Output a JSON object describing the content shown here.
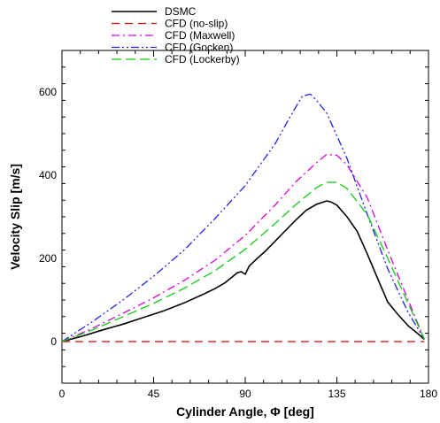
{
  "chart_data": {
    "type": "line",
    "title": "",
    "xlabel": "Cylinder Angle, Φ [deg]",
    "ylabel": "Velocity Slip [m/s]",
    "xlim": [
      0,
      180
    ],
    "ylim": [
      -100,
      700
    ],
    "xticks": [
      0,
      45,
      90,
      135,
      180
    ],
    "yticks": [
      0,
      200,
      400,
      600
    ],
    "xtick_labels": [
      "0",
      "45",
      "90",
      "135",
      "180"
    ],
    "ytick_labels": [
      "0",
      "200",
      "400",
      "600"
    ],
    "grid": false,
    "legend_position": "top-center",
    "series": [
      {
        "name": "DSMC",
        "color": "#000000",
        "dash": "solid",
        "x": [
          0,
          10,
          20,
          30,
          40,
          50,
          60,
          70,
          75,
          80,
          84,
          86,
          88,
          90,
          92,
          95,
          100,
          105,
          110,
          115,
          120,
          125,
          130,
          132,
          135,
          140,
          145,
          150,
          155,
          160,
          165,
          170,
          175,
          178
        ],
        "y": [
          0,
          13,
          28,
          42,
          58,
          74,
          93,
          115,
          127,
          141,
          157,
          165,
          168,
          162,
          182,
          196,
          218,
          243,
          268,
          293,
          316,
          330,
          338,
          336,
          328,
          300,
          265,
          210,
          152,
          95,
          65,
          38,
          18,
          5
        ]
      },
      {
        "name": "CFD (no-slip)",
        "color": "#dd0000",
        "dash": "long-dash",
        "x": [
          0,
          178
        ],
        "y": [
          0,
          0
        ]
      },
      {
        "name": "CFD (Maxwell)",
        "color": "#dd00dd",
        "dash": "dash-dot",
        "x": [
          0,
          15,
          30,
          45,
          60,
          75,
          90,
          105,
          115,
          125,
          130,
          135,
          140,
          150,
          160,
          170,
          178
        ],
        "y": [
          0,
          32,
          68,
          105,
          147,
          195,
          255,
          330,
          385,
          430,
          450,
          448,
          425,
          345,
          220,
          100,
          5
        ]
      },
      {
        "name": "CFD (Gocken)",
        "color": "#2222dd",
        "dash": "dash-dot-dot",
        "x": [
          0,
          15,
          30,
          45,
          60,
          75,
          90,
          105,
          112,
          118,
          122,
          125,
          130,
          140,
          150,
          160,
          170,
          178
        ],
        "y": [
          0,
          48,
          100,
          157,
          220,
          295,
          375,
          478,
          540,
          590,
          595,
          580,
          550,
          440,
          305,
          175,
          70,
          5
        ]
      },
      {
        "name": "CFD (Lockerby)",
        "color": "#11cc11",
        "dash": "dash",
        "x": [
          0,
          15,
          30,
          45,
          60,
          75,
          90,
          105,
          115,
          125,
          130,
          135,
          140,
          150,
          160,
          170,
          178
        ],
        "y": [
          0,
          28,
          60,
          92,
          128,
          170,
          222,
          285,
          330,
          370,
          383,
          383,
          368,
          305,
          200,
          92,
          5
        ]
      }
    ]
  }
}
